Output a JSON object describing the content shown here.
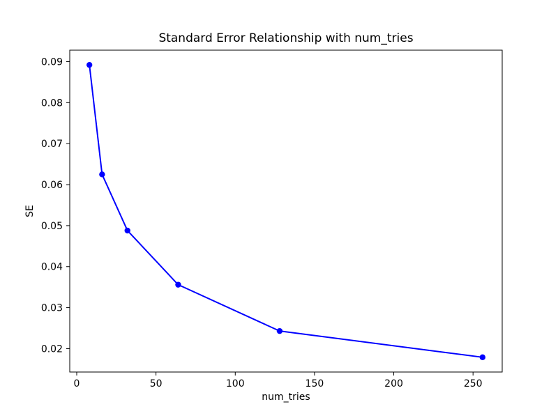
{
  "chart_data": {
    "type": "line",
    "title": "Standard Error Relationship with num_tries",
    "xlabel": "num_tries",
    "ylabel": "SE",
    "x": [
      8,
      16,
      32,
      64,
      128,
      256
    ],
    "y": [
      0.0892,
      0.0625,
      0.0488,
      0.0356,
      0.0243,
      0.0179
    ],
    "x_ticks": [
      0,
      50,
      100,
      150,
      200,
      250
    ],
    "y_ticks": [
      0.02,
      0.03,
      0.04,
      0.05,
      0.06,
      0.07,
      0.08,
      0.09
    ],
    "y_tick_decimals": 2,
    "xlim": [
      -4.4,
      268.4
    ],
    "ylim": [
      0.0143,
      0.0928
    ],
    "line_color": "#0000ff",
    "marker": "circle",
    "marker_radius": 4.2,
    "line_width": 2,
    "grid": false,
    "legend": "none",
    "background_color": "#ffffff",
    "spine_color": "#000000"
  }
}
